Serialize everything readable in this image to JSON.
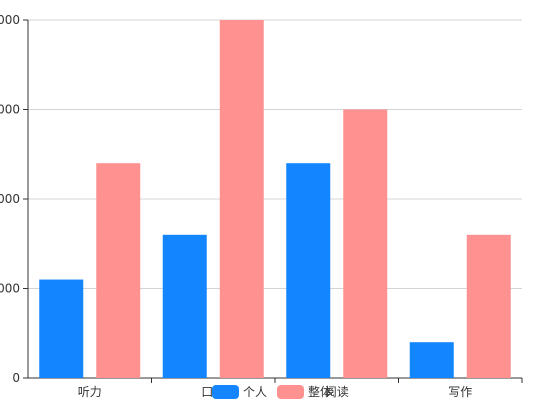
{
  "chart_data": {
    "type": "bar",
    "categories": [
      "听力",
      "口语",
      "阅读",
      "写作"
    ],
    "series": [
      {
        "name": "个人",
        "values": [
          22,
          32,
          48,
          8
        ],
        "color": "#1385ff"
      },
      {
        "name": "整体",
        "values": [
          48,
          80,
          60,
          32
        ],
        "color": "#ff9191"
      }
    ],
    "ylim": [
      0,
      80
    ],
    "yticks": [
      "0",
      "000",
      "000",
      "000",
      "000"
    ],
    "grid": true,
    "legend_placement": "bottom-center"
  }
}
